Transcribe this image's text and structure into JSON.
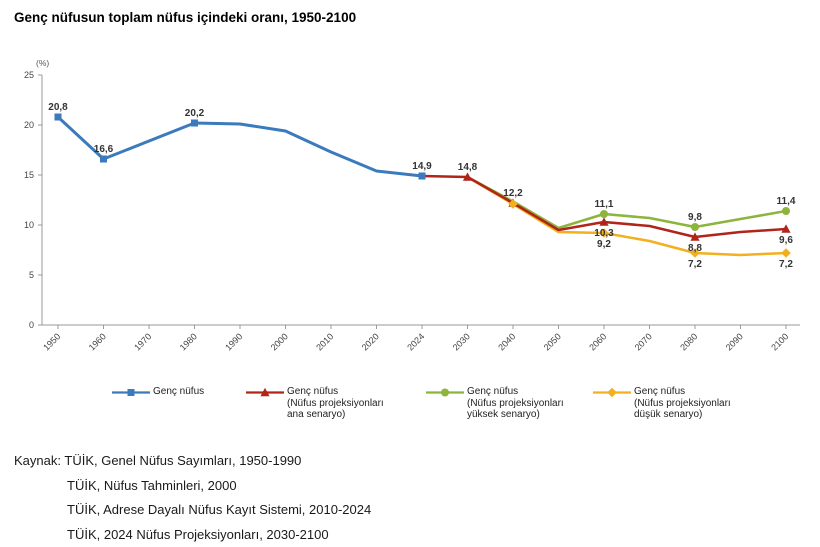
{
  "header": {
    "title": "Genç nüfusun toplam nüfus içindeki oranı, 1950-2100"
  },
  "chart_data": {
    "type": "line",
    "title": "Genç nüfusun toplam nüfus içindeki oranı, 1950-2100",
    "y_unit_label": "(%)",
    "ylim": [
      0,
      25
    ],
    "yticks": [
      0,
      5,
      10,
      15,
      20,
      25
    ],
    "grid": false,
    "legend_position": "bottom",
    "x_categories": [
      "1950",
      "1960",
      "1970",
      "1980",
      "1990",
      "2000",
      "2010",
      "2020",
      "2024",
      "2030",
      "2040",
      "2050",
      "2060",
      "2070",
      "2080",
      "2090",
      "2100"
    ],
    "series": [
      {
        "name": "Genç nüfus",
        "legend_lines": [
          "Genç nüfus"
        ],
        "color": "#3a7abd",
        "marker": "square",
        "points": [
          {
            "x": "1950",
            "v": 20.8,
            "label": "20,8",
            "labelPos": "above",
            "marker": true
          },
          {
            "x": "1960",
            "v": 16.6,
            "label": "16,6",
            "labelPos": "above",
            "marker": true
          },
          {
            "x": "1970",
            "v": 18.4
          },
          {
            "x": "1980",
            "v": 20.2,
            "label": "20,2",
            "labelPos": "above",
            "marker": true
          },
          {
            "x": "1990",
            "v": 20.1
          },
          {
            "x": "2000",
            "v": 19.4
          },
          {
            "x": "2010",
            "v": 17.3
          },
          {
            "x": "2020",
            "v": 15.4
          },
          {
            "x": "2024",
            "v": 14.9,
            "label": "14,9",
            "labelPos": "above",
            "marker": true
          }
        ]
      },
      {
        "name": "Genç nüfus (Nüfus projeksiyonları ana senaryo)",
        "legend_lines": [
          "Genç nüfus",
          "(Nüfus projeksiyonları",
          "ana senaryo)"
        ],
        "color": "#b0241a",
        "marker": "triangle",
        "points": [
          {
            "x": "2024",
            "v": 14.9
          },
          {
            "x": "2030",
            "v": 14.8,
            "label": "14,8",
            "labelPos": "above",
            "marker": true
          },
          {
            "x": "2040",
            "v": 12.2,
            "label": "12,2",
            "labelPos": "above",
            "marker": true
          },
          {
            "x": "2050",
            "v": 9.5
          },
          {
            "x": "2060",
            "v": 10.3,
            "label": "10,3",
            "labelPos": "below",
            "marker": true
          },
          {
            "x": "2070",
            "v": 9.9
          },
          {
            "x": "2080",
            "v": 8.8,
            "label": "8,8",
            "labelPos": "below",
            "marker": true
          },
          {
            "x": "2090",
            "v": 9.3
          },
          {
            "x": "2100",
            "v": 9.6,
            "label": "9,6",
            "labelPos": "below",
            "marker": true
          }
        ]
      },
      {
        "name": "Genç nüfus (Nüfus projeksiyonları yüksek senaryo)",
        "legend_lines": [
          "Genç nüfus",
          "(Nüfus projeksiyonları",
          "yüksek senaryo)"
        ],
        "color": "#8db43c",
        "marker": "circle",
        "points": [
          {
            "x": "2030",
            "v": 14.8
          },
          {
            "x": "2040",
            "v": 12.35
          },
          {
            "x": "2050",
            "v": 9.7
          },
          {
            "x": "2060",
            "v": 11.1,
            "label": "11,1",
            "labelPos": "above",
            "marker": true
          },
          {
            "x": "2070",
            "v": 10.7
          },
          {
            "x": "2080",
            "v": 9.8,
            "label": "9,8",
            "labelPos": "above",
            "marker": true
          },
          {
            "x": "2090",
            "v": 10.6
          },
          {
            "x": "2100",
            "v": 11.4,
            "label": "11,4",
            "labelPos": "above",
            "marker": true
          }
        ]
      },
      {
        "name": "Genç nüfus (Nüfus projeksiyonları düşük senaryo)",
        "legend_lines": [
          "Genç nüfus",
          "(Nüfus projeksiyonları",
          "düşük senaryo)"
        ],
        "color": "#f2b01f",
        "marker": "diamond",
        "points": [
          {
            "x": "2030",
            "v": 14.8
          },
          {
            "x": "2040",
            "v": 12.1,
            "marker": true
          },
          {
            "x": "2050",
            "v": 9.3
          },
          {
            "x": "2060",
            "v": 9.2,
            "label": "9,2",
            "labelPos": "below",
            "marker": true
          },
          {
            "x": "2070",
            "v": 8.4
          },
          {
            "x": "2080",
            "v": 7.2,
            "label": "7,2",
            "labelPos": "below",
            "marker": true
          },
          {
            "x": "2090",
            "v": 7.0
          },
          {
            "x": "2100",
            "v": 7.2,
            "label": "7,2",
            "labelPos": "below",
            "marker": true
          }
        ]
      }
    ]
  },
  "source": {
    "label": "Kaynak:",
    "lines": [
      "TÜİK, Genel Nüfus Sayımları, 1950-1990",
      "TÜİK, Nüfus Tahminleri, 2000",
      "TÜİK, Adrese Dayalı Nüfus Kayıt Sistemi, 2010-2024",
      "TÜİK, 2024 Nüfus Projeksiyonları, 2030-2100"
    ]
  }
}
